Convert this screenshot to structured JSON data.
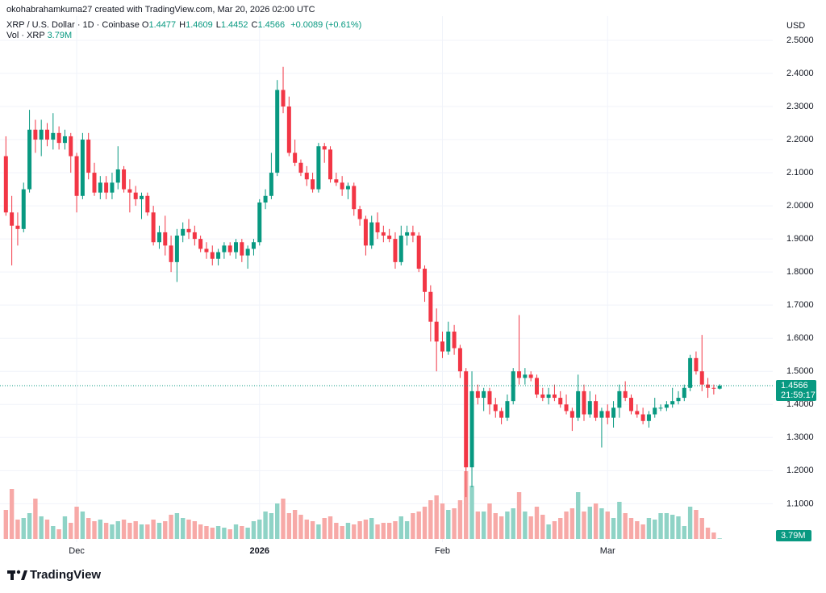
{
  "header": {
    "attribution": "okohabrahamkuma27 created with TradingView.com, Mar 20, 2026 02:00 UTC",
    "symbol": "XRP / U.S. Dollar · 1D · Coinbase",
    "ohlc": [
      {
        "key": "O",
        "value": "1.4477"
      },
      {
        "key": "H",
        "value": "1.4609"
      },
      {
        "key": "L",
        "value": "1.4452"
      },
      {
        "key": "C",
        "value": "1.4566"
      }
    ],
    "change": "+0.0089 (+0.61%)",
    "volume_title": "Vol · XRP"
  },
  "logo": "TradingView",
  "chart_data": {
    "type": "candlestick",
    "currency": "USD",
    "countdown": "21:59:17",
    "up_color": "#089981",
    "down_color": "#f23645",
    "xlim": [
      -1,
      130
    ],
    "xticks": [
      {
        "value": 12,
        "label": "Dec"
      },
      {
        "value": 43,
        "label": "2026"
      },
      {
        "value": 74,
        "label": "Feb"
      },
      {
        "value": 102,
        "label": "Mar"
      }
    ],
    "ylim": [
      0.94,
      2.573
    ],
    "yticks": [
      {
        "value": 1.1,
        "label": "1.1000"
      },
      {
        "value": 1.2,
        "label": "1.2000"
      },
      {
        "value": 1.3,
        "label": "1.3000"
      },
      {
        "value": 1.4,
        "label": "1.4000"
      },
      {
        "value": 1.5,
        "label": "1.5000"
      },
      {
        "value": 1.6,
        "label": "1.6000"
      },
      {
        "value": 1.7,
        "label": "1.7000"
      },
      {
        "value": 1.8,
        "label": "1.8000"
      },
      {
        "value": 1.9,
        "label": "1.9000"
      },
      {
        "value": 2.0,
        "label": "2.0000"
      },
      {
        "value": 2.1,
        "label": "2.1000"
      },
      {
        "value": 2.2,
        "label": "2.2000"
      },
      {
        "value": 2.3,
        "label": "2.3000"
      },
      {
        "value": 2.4,
        "label": "2.4000"
      },
      {
        "value": 2.5,
        "label": "2.5000"
      }
    ],
    "grid": true,
    "open": [
      2.15,
      1.98,
      1.94,
      1.93,
      2.05,
      2.23,
      2.2,
      2.23,
      2.2,
      2.22,
      2.19,
      2.21,
      2.15,
      2.03,
      2.2,
      2.1,
      2.04,
      2.07,
      2.04,
      2.07,
      2.11,
      2.05,
      2.04,
      2.02,
      2.03,
      1.98,
      1.89,
      1.92,
      1.88,
      1.83,
      1.91,
      1.93,
      1.92,
      1.9,
      1.87,
      1.86,
      1.84,
      1.86,
      1.88,
      1.86,
      1.89,
      1.85,
      1.87,
      1.89,
      2.01,
      2.03,
      2.1,
      2.35,
      2.3,
      2.16,
      2.13,
      2.1,
      2.08,
      2.05,
      2.18,
      2.17,
      2.08,
      2.07,
      2.05,
      2.06,
      1.99,
      1.96,
      1.88,
      1.95,
      1.92,
      1.91,
      1.9,
      1.83,
      1.91,
      1.92,
      1.91,
      1.81,
      1.74,
      1.65,
      1.59,
      1.56,
      1.62,
      1.57,
      1.5,
      1.21,
      1.44,
      1.42,
      1.44,
      1.4,
      1.38,
      1.36,
      1.41,
      1.5,
      1.48,
      1.49,
      1.48,
      1.43,
      1.42,
      1.43,
      1.42,
      1.4,
      1.38,
      1.36,
      1.44,
      1.37,
      1.41,
      1.36,
      1.38,
      1.36,
      1.39,
      1.44,
      1.42,
      1.38,
      1.37,
      1.35,
      1.37,
      1.39,
      1.39,
      1.4,
      1.41,
      1.42,
      1.45,
      1.54,
      1.5,
      1.46,
      1.45,
      1.4477
    ],
    "high": [
      2.21,
      2.03,
      1.98,
      2.07,
      2.29,
      2.26,
      2.26,
      2.25,
      2.28,
      2.24,
      2.23,
      2.22,
      2.16,
      2.22,
      2.22,
      2.13,
      2.09,
      2.09,
      2.1,
      2.18,
      2.12,
      2.08,
      2.06,
      2.04,
      2.04,
      2.0,
      1.94,
      1.97,
      1.91,
      1.93,
      1.95,
      1.96,
      1.94,
      1.91,
      1.89,
      1.88,
      1.87,
      1.89,
      1.89,
      1.9,
      1.9,
      1.88,
      1.9,
      2.02,
      2.05,
      2.16,
      2.38,
      2.42,
      2.33,
      2.2,
      2.14,
      2.12,
      2.1,
      2.19,
      2.19,
      2.18,
      2.1,
      2.09,
      2.07,
      2.07,
      2.0,
      1.97,
      1.97,
      1.98,
      1.94,
      1.93,
      1.92,
      1.94,
      1.94,
      1.94,
      1.92,
      1.82,
      1.76,
      1.69,
      1.62,
      1.65,
      1.64,
      1.58,
      1.51,
      1.5,
      1.46,
      1.45,
      1.45,
      1.42,
      1.39,
      1.43,
      1.51,
      1.67,
      1.51,
      1.5,
      1.49,
      1.45,
      1.45,
      1.46,
      1.44,
      1.43,
      1.39,
      1.49,
      1.46,
      1.44,
      1.43,
      1.39,
      1.4,
      1.41,
      1.46,
      1.47,
      1.43,
      1.4,
      1.39,
      1.38,
      1.42,
      1.4,
      1.41,
      1.45,
      1.44,
      1.46,
      1.55,
      1.56,
      1.61,
      1.48,
      1.46,
      1.4609
    ],
    "low": [
      1.97,
      1.82,
      1.88,
      1.92,
      2.04,
      2.16,
      2.15,
      2.18,
      2.17,
      2.17,
      2.17,
      2.1,
      1.98,
      2.02,
      2.08,
      2.03,
      2.02,
      2.02,
      2.02,
      2.05,
      2.04,
      1.98,
      2.0,
      1.96,
      1.97,
      1.88,
      1.87,
      1.85,
      1.8,
      1.77,
      1.89,
      1.9,
      1.88,
      1.86,
      1.84,
      1.82,
      1.82,
      1.84,
      1.85,
      1.84,
      1.83,
      1.81,
      1.85,
      1.88,
      1.99,
      2.02,
      2.09,
      2.28,
      2.15,
      2.12,
      2.09,
      2.06,
      2.04,
      2.04,
      2.13,
      2.07,
      2.06,
      2.03,
      2.02,
      1.97,
      1.94,
      1.85,
      1.87,
      1.9,
      1.89,
      1.89,
      1.81,
      1.82,
      1.88,
      1.89,
      1.8,
      1.71,
      1.59,
      1.5,
      1.54,
      1.55,
      1.55,
      1.48,
      1.12,
      1.15,
      1.4,
      1.38,
      1.37,
      1.36,
      1.34,
      1.35,
      1.4,
      1.46,
      1.46,
      1.47,
      1.42,
      1.41,
      1.4,
      1.41,
      1.39,
      1.37,
      1.32,
      1.35,
      1.35,
      1.36,
      1.35,
      1.27,
      1.34,
      1.33,
      1.36,
      1.41,
      1.37,
      1.36,
      1.34,
      1.33,
      1.36,
      1.38,
      1.38,
      1.39,
      1.4,
      1.41,
      1.44,
      1.49,
      1.44,
      1.42,
      1.43,
      1.4452
    ],
    "close": [
      1.98,
      1.94,
      1.93,
      2.05,
      2.23,
      2.2,
      2.23,
      2.2,
      2.22,
      2.19,
      2.21,
      2.15,
      2.03,
      2.2,
      2.1,
      2.04,
      2.07,
      2.04,
      2.07,
      2.11,
      2.05,
      2.04,
      2.02,
      2.03,
      1.98,
      1.89,
      1.92,
      1.88,
      1.83,
      1.91,
      1.93,
      1.92,
      1.9,
      1.87,
      1.86,
      1.84,
      1.86,
      1.88,
      1.86,
      1.89,
      1.85,
      1.87,
      1.89,
      2.01,
      2.03,
      2.1,
      2.35,
      2.3,
      2.16,
      2.13,
      2.1,
      2.08,
      2.05,
      2.18,
      2.17,
      2.08,
      2.07,
      2.05,
      2.06,
      1.99,
      1.96,
      1.88,
      1.95,
      1.92,
      1.91,
      1.9,
      1.83,
      1.91,
      1.92,
      1.91,
      1.81,
      1.74,
      1.65,
      1.59,
      1.56,
      1.62,
      1.57,
      1.5,
      1.21,
      1.44,
      1.42,
      1.44,
      1.4,
      1.38,
      1.36,
      1.41,
      1.5,
      1.48,
      1.49,
      1.48,
      1.43,
      1.42,
      1.43,
      1.42,
      1.4,
      1.38,
      1.36,
      1.44,
      1.37,
      1.41,
      1.36,
      1.38,
      1.36,
      1.39,
      1.44,
      1.42,
      1.38,
      1.37,
      1.35,
      1.37,
      1.39,
      1.39,
      1.4,
      1.41,
      1.42,
      1.45,
      1.54,
      1.5,
      1.46,
      1.45,
      1.4477,
      1.4566
    ],
    "volume": {
      "up_color": "#8fd3c6",
      "down_color": "#f7a9a7",
      "vlim": [
        0,
        440
      ],
      "last_label": "3.79M",
      "values": [
        180,
        310,
        120,
        130,
        160,
        250,
        140,
        120,
        80,
        60,
        140,
        100,
        200,
        170,
        130,
        110,
        120,
        100,
        90,
        110,
        120,
        100,
        110,
        90,
        90,
        120,
        100,
        110,
        150,
        160,
        130,
        120,
        110,
        90,
        80,
        70,
        80,
        70,
        60,
        90,
        80,
        70,
        110,
        120,
        170,
        160,
        220,
        250,
        160,
        180,
        150,
        120,
        110,
        90,
        130,
        140,
        100,
        80,
        100,
        90,
        110,
        120,
        130,
        90,
        100,
        100,
        110,
        140,
        110,
        160,
        170,
        200,
        240,
        270,
        220,
        180,
        190,
        240,
        420,
        330,
        170,
        170,
        220,
        160,
        140,
        170,
        190,
        290,
        170,
        140,
        200,
        150,
        90,
        110,
        130,
        170,
        190,
        290,
        170,
        200,
        220,
        190,
        170,
        130,
        230,
        160,
        130,
        110,
        90,
        130,
        120,
        160,
        160,
        150,
        140,
        80,
        200,
        180,
        130,
        70,
        40,
        3.79
      ]
    }
  }
}
